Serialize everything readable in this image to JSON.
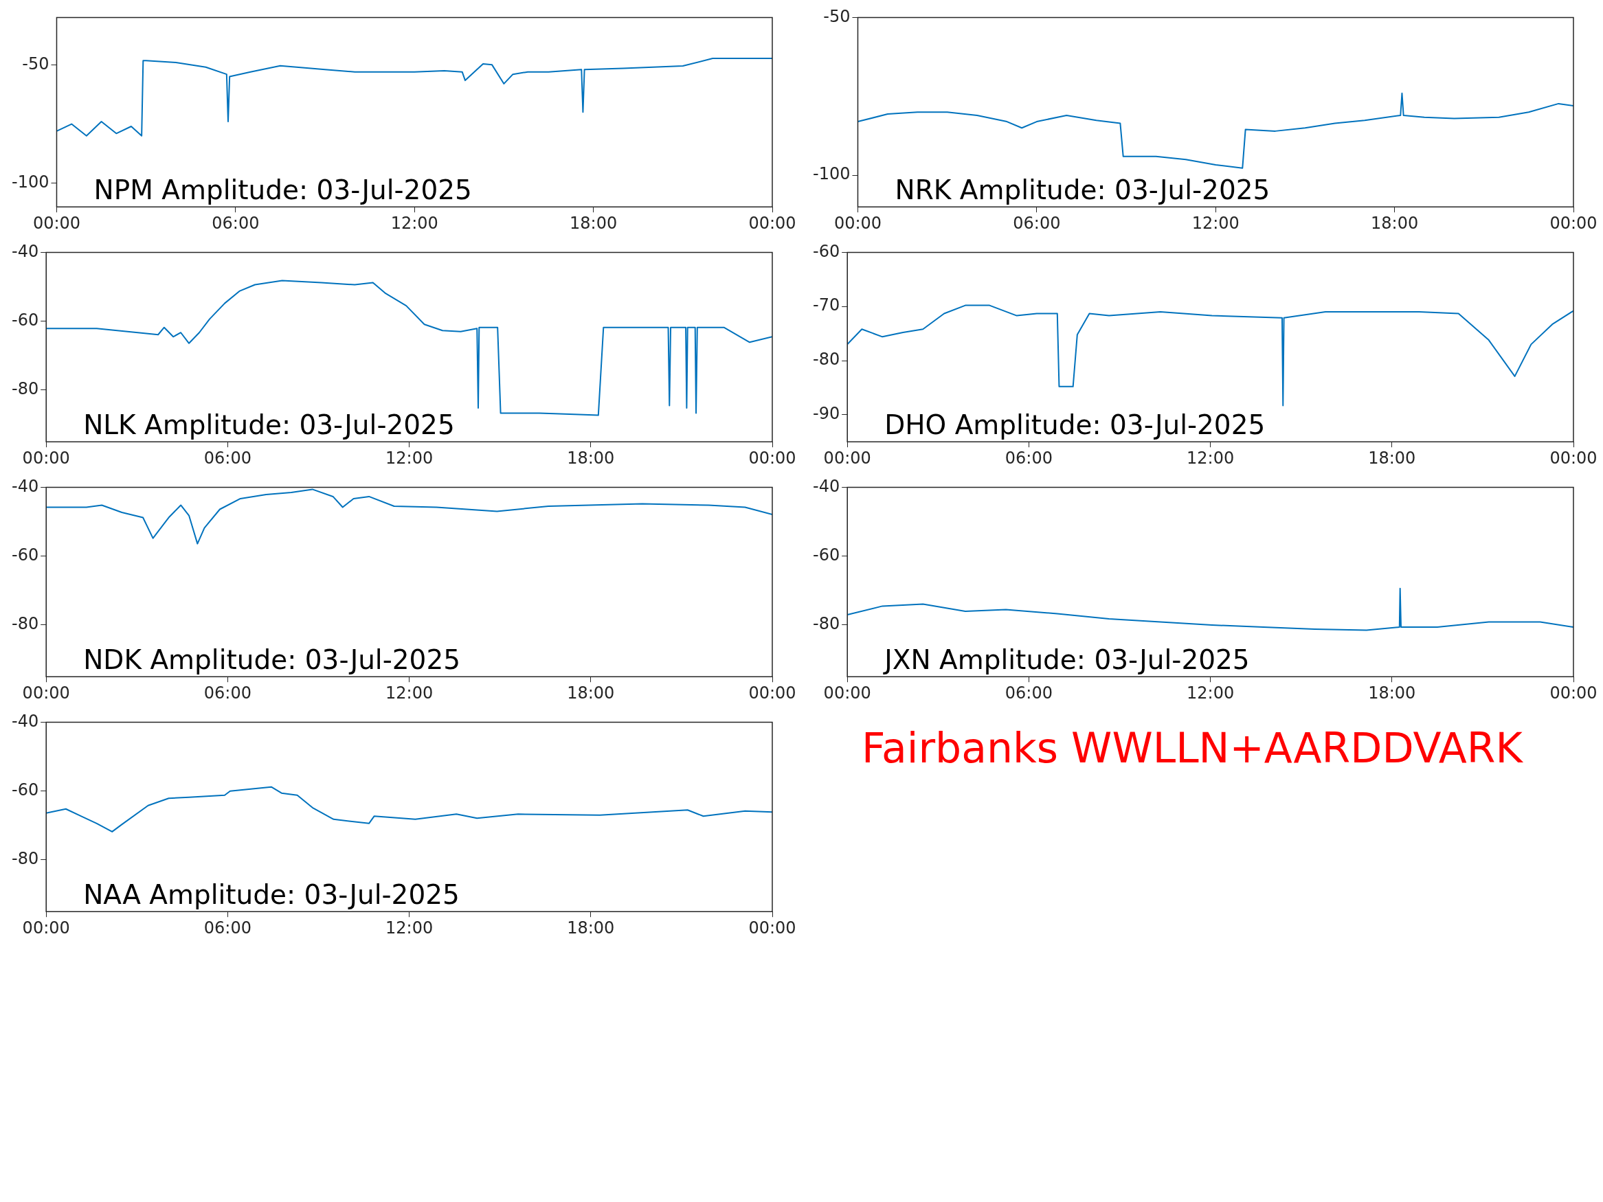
{
  "chart_data": [
    {
      "type": "line",
      "title": "NPM Amplitude: 03-Jul-2025",
      "color": "#0072bd",
      "xlim": [
        0,
        24
      ],
      "xticks": [
        {
          "value": 0,
          "label": "00:00"
        },
        {
          "value": 6,
          "label": "06:00"
        },
        {
          "value": 12,
          "label": "12:00"
        },
        {
          "value": 18,
          "label": "18:00"
        },
        {
          "value": 24,
          "label": "00:00"
        }
      ],
      "ylim": [
        -110,
        -30
      ],
      "yticks": [
        -100,
        -50
      ],
      "x": [
        0,
        0.5,
        1,
        1.5,
        2,
        2.5,
        2.85,
        2.9,
        3,
        4,
        5,
        5.7,
        5.75,
        5.8,
        6.5,
        7.5,
        9,
        10,
        12,
        13,
        13.6,
        13.7,
        14.3,
        14.6,
        15,
        15.3,
        15.8,
        16.5,
        17.6,
        17.65,
        17.7,
        19,
        21,
        22,
        24
      ],
      "values": [
        -78,
        -75,
        -80,
        -74,
        -79,
        -76,
        -80,
        -48.2,
        -48.2,
        -49,
        -51,
        -54,
        -74,
        -55,
        -53,
        -50.4,
        -52,
        -53,
        -53,
        -52.5,
        -53,
        -56.6,
        -49.6,
        -50,
        -58,
        -54,
        -53,
        -53,
        -52,
        -70,
        -52,
        -51.5,
        -50.5,
        -47.3,
        -47.3
      ]
    },
    {
      "type": "line",
      "title": "NRK Amplitude: 03-Jul-2025",
      "color": "#0072bd",
      "xlim": [
        0,
        24
      ],
      "xticks": [
        {
          "value": 0,
          "label": "00:00"
        },
        {
          "value": 6,
          "label": "06:00"
        },
        {
          "value": 12,
          "label": "12:00"
        },
        {
          "value": 18,
          "label": "18:00"
        },
        {
          "value": 24,
          "label": "00:00"
        }
      ],
      "ylim": [
        -110,
        -50
      ],
      "yticks": [
        -100,
        -50
      ],
      "x": [
        0,
        1,
        2,
        3,
        4,
        5,
        5.5,
        6,
        7,
        8,
        8.8,
        8.9,
        10,
        11,
        12,
        12.9,
        13,
        14,
        15,
        16,
        17,
        18.2,
        18.25,
        18.3,
        19,
        20,
        21.5,
        22.5,
        23.5,
        24
      ],
      "values": [
        -83,
        -80.6,
        -80,
        -80,
        -81,
        -83,
        -85,
        -83,
        -81,
        -82.6,
        -83.5,
        -94,
        -94,
        -95,
        -96.7,
        -97.7,
        -85.5,
        -86,
        -85,
        -83.5,
        -82.6,
        -81,
        -74,
        -81,
        -81.6,
        -82,
        -81.6,
        -80,
        -77.3,
        -78
      ]
    },
    {
      "type": "line",
      "title": "NLK Amplitude: 03-Jul-2025",
      "color": "#0072bd",
      "xlim": [
        0,
        24
      ],
      "xticks": [
        {
          "value": 0,
          "label": "00:00"
        },
        {
          "value": 6,
          "label": "06:00"
        },
        {
          "value": 12,
          "label": "12:00"
        },
        {
          "value": 18,
          "label": "18:00"
        },
        {
          "value": 24,
          "label": "00:00"
        }
      ],
      "ylim": [
        -95,
        -40
      ],
      "yticks": [
        -80,
        -60,
        -40
      ],
      "x": [
        0,
        1.67,
        3.03,
        3.7,
        3.9,
        4.2,
        4.45,
        4.72,
        5.06,
        5.4,
        5.9,
        6.4,
        6.9,
        7.8,
        9.1,
        10.2,
        10.8,
        11.2,
        11.9,
        12.5,
        13.1,
        13.7,
        14.24,
        14.28,
        14.31,
        14.92,
        15.02,
        16.3,
        17.3,
        18.25,
        18.42,
        20.56,
        20.6,
        20.64,
        21.14,
        21.17,
        21.2,
        21.45,
        21.48,
        21.52,
        22.4,
        23.25,
        24
      ],
      "values": [
        -62.1,
        -62.1,
        -63.3,
        -63.9,
        -61.8,
        -64.5,
        -63.3,
        -66.4,
        -63.3,
        -59.4,
        -54.8,
        -51.2,
        -49.4,
        -48.2,
        -48.8,
        -49.4,
        -48.8,
        -51.8,
        -55.5,
        -60.9,
        -62.7,
        -63,
        -62.1,
        -85.2,
        -61.8,
        -61.8,
        -86.7,
        -86.7,
        -87,
        -87.3,
        -61.8,
        -61.8,
        -84.5,
        -61.8,
        -61.8,
        -85.2,
        -61.8,
        -61.8,
        -86.7,
        -61.8,
        -61.8,
        -66.1,
        -64.5
      ]
    },
    {
      "type": "line",
      "title": "DHO Amplitude: 03-Jul-2025",
      "color": "#0072bd",
      "xlim": [
        0,
        24
      ],
      "xticks": [
        {
          "value": 0,
          "label": "00:00"
        },
        {
          "value": 6,
          "label": "06:00"
        },
        {
          "value": 12,
          "label": "12:00"
        },
        {
          "value": 18,
          "label": "18:00"
        },
        {
          "value": 24,
          "label": "00:00"
        }
      ],
      "ylim": [
        -95,
        -60
      ],
      "yticks": [
        -90,
        -80,
        -70,
        -60
      ],
      "x": [
        0,
        0.48,
        1.16,
        1.84,
        2.5,
        3.2,
        3.9,
        4.7,
        5.6,
        6.26,
        6.94,
        7,
        7.46,
        7.6,
        8,
        8.65,
        10.35,
        12.05,
        14.37,
        14.4,
        14.43,
        15.8,
        18.9,
        20.2,
        21.2,
        22.06,
        22.6,
        23.3,
        24
      ],
      "values": [
        -77,
        -74.2,
        -75.6,
        -74.8,
        -74.2,
        -71.3,
        -69.8,
        -69.8,
        -71.7,
        -71.3,
        -71.3,
        -84.8,
        -84.8,
        -75.2,
        -71.3,
        -71.7,
        -71,
        -71.7,
        -72.1,
        -88.3,
        -72.1,
        -71,
        -71,
        -71.3,
        -76.2,
        -82.9,
        -77,
        -73.3,
        -70.8
      ]
    },
    {
      "type": "line",
      "title": "NDK Amplitude: 03-Jul-2025",
      "color": "#0072bd",
      "xlim": [
        0,
        24
      ],
      "xticks": [
        {
          "value": 0,
          "label": "00:00"
        },
        {
          "value": 6,
          "label": "06:00"
        },
        {
          "value": 12,
          "label": "12:00"
        },
        {
          "value": 18,
          "label": "18:00"
        },
        {
          "value": 24,
          "label": "00:00"
        }
      ],
      "ylim": [
        -95,
        -40
      ],
      "yticks": [
        -80,
        -60,
        -40
      ],
      "x": [
        0,
        1.33,
        1.84,
        2.5,
        3.2,
        3.53,
        4.05,
        4.45,
        4.72,
        5,
        5.23,
        5.74,
        6.42,
        7.27,
        8.1,
        8.8,
        9.48,
        9.8,
        10.16,
        10.67,
        11.5,
        12.9,
        13.9,
        14.9,
        16.6,
        19.7,
        21.9,
        23.1,
        24
      ],
      "values": [
        -45.8,
        -45.8,
        -45.2,
        -47.3,
        -48.8,
        -54.8,
        -48.8,
        -45.2,
        -48.2,
        -56.4,
        -51.8,
        -46.4,
        -43.3,
        -42.1,
        -41.5,
        -40.6,
        -42.7,
        -45.8,
        -43.3,
        -42.7,
        -45.5,
        -45.8,
        -46.4,
        -47,
        -45.5,
        -44.8,
        -45.2,
        -45.8,
        -47.9
      ]
    },
    {
      "type": "line",
      "title": "JXN Amplitude: 03-Jul-2025",
      "color": "#0072bd",
      "xlim": [
        0,
        24
      ],
      "xticks": [
        {
          "value": 0,
          "label": "00:00"
        },
        {
          "value": 6,
          "label": "06:00"
        },
        {
          "value": 12,
          "label": "12:00"
        },
        {
          "value": 18,
          "label": "18:00"
        },
        {
          "value": 24,
          "label": "00:00"
        }
      ],
      "ylim": [
        -95,
        -40
      ],
      "yticks": [
        -80,
        -60,
        -40
      ],
      "x": [
        0,
        1.16,
        2.5,
        3.9,
        5.24,
        6.94,
        8.65,
        10.35,
        12.05,
        13.75,
        15.45,
        17.16,
        18.25,
        18.27,
        18.3,
        19.5,
        21.2,
        22.9,
        24
      ],
      "values": [
        -77,
        -74.5,
        -73.9,
        -76,
        -75.5,
        -76.7,
        -78.2,
        -79.1,
        -80,
        -80.6,
        -81.2,
        -81.5,
        -80.6,
        -69.4,
        -80.6,
        -80.6,
        -79.1,
        -79.1,
        -80.6
      ]
    },
    {
      "type": "line",
      "title": "NAA Amplitude: 03-Jul-2025",
      "color": "#0072bd",
      "xlim": [
        0,
        24
      ],
      "xticks": [
        {
          "value": 0,
          "label": "00:00"
        },
        {
          "value": 6,
          "label": "06:00"
        },
        {
          "value": 12,
          "label": "12:00"
        },
        {
          "value": 18,
          "label": "18:00"
        },
        {
          "value": 24,
          "label": "00:00"
        }
      ],
      "ylim": [
        -95,
        -40
      ],
      "yticks": [
        -80,
        -60,
        -40
      ],
      "x": [
        0,
        0.65,
        1.16,
        1.67,
        2.18,
        2.5,
        3.37,
        4.05,
        4.72,
        5.9,
        6.08,
        7.44,
        7.78,
        8.3,
        8.8,
        9.5,
        10.67,
        10.84,
        12.2,
        13.56,
        14.24,
        15.6,
        18.3,
        21.2,
        21.72,
        23.1,
        24
      ],
      "values": [
        -66.4,
        -65.2,
        -67.3,
        -69.4,
        -71.8,
        -69.7,
        -64.2,
        -62.1,
        -61.8,
        -61.2,
        -60,
        -58.8,
        -60.6,
        -61.2,
        -64.8,
        -68.2,
        -69.4,
        -67.3,
        -68.2,
        -66.7,
        -67.9,
        -66.7,
        -67,
        -65.5,
        -67.3,
        -65.8,
        -66.1
      ]
    },
    {
      "type": "other",
      "title": "Fairbanks WWLLN+AARDDVARK",
      "color": "#ff0000"
    }
  ]
}
